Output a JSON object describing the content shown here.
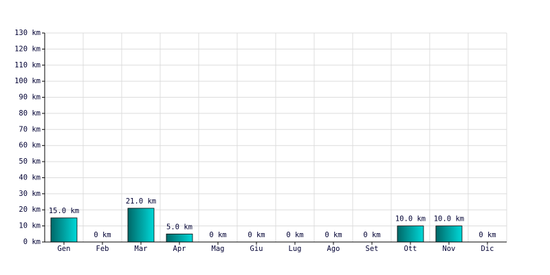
{
  "chart_data": {
    "type": "bar",
    "categories": [
      "Gen",
      "Feb",
      "Mar",
      "Apr",
      "Mag",
      "Giu",
      "Lug",
      "Ago",
      "Set",
      "Ott",
      "Nov",
      "Dic"
    ],
    "values": [
      15,
      0,
      21,
      5,
      0,
      0,
      0,
      0,
      0,
      10,
      10,
      0
    ],
    "value_labels": [
      "15.0 km",
      "0 km",
      "21.0 km",
      "5.0 km",
      "0 km",
      "0 km",
      "0 km",
      "0 km",
      "0 km",
      "10.0 km",
      "10.0 km",
      "0 km"
    ],
    "color": "#00d8d8",
    "ylim": [
      0,
      130
    ],
    "yticks": [
      {
        "value": 0,
        "label": "0 km"
      },
      {
        "value": 10,
        "label": "10 km"
      },
      {
        "value": 20,
        "label": "20 km"
      },
      {
        "value": 30,
        "label": "30 km"
      },
      {
        "value": 40,
        "label": "40 km"
      },
      {
        "value": 50,
        "label": "50 km"
      },
      {
        "value": 60,
        "label": "60 km"
      },
      {
        "value": 70,
        "label": "70 km"
      },
      {
        "value": 80,
        "label": "80 km"
      },
      {
        "value": 90,
        "label": "90 km"
      },
      {
        "value": 100,
        "label": "100 km"
      },
      {
        "value": 110,
        "label": "110 km"
      },
      {
        "value": 120,
        "label": "120 km"
      },
      {
        "value": 130,
        "label": "130 km"
      }
    ],
    "grid": true
  }
}
